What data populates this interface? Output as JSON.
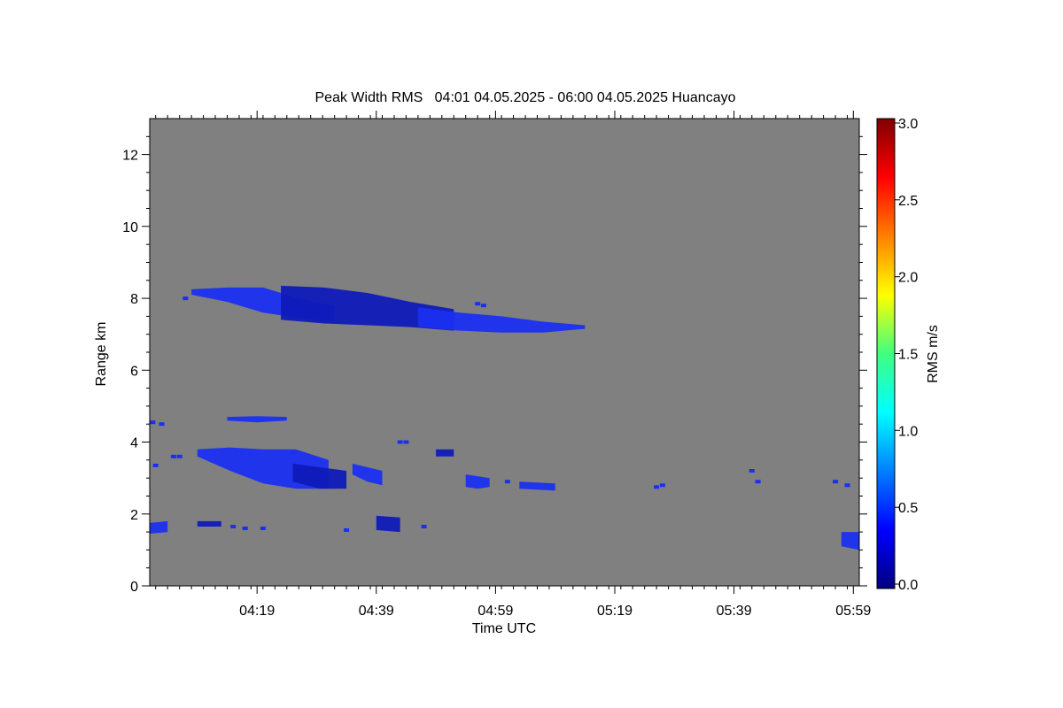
{
  "chart_data": {
    "type": "heatmap",
    "title": "Peak Width RMS   04:01 04.05.2025 - 06:00 04.05.2025 Huancayo",
    "xlabel": "Time UTC",
    "ylabel": "Range km",
    "x_range_minutes_utc": [
      241,
      360
    ],
    "xlim": [
      "04:01",
      "06:00"
    ],
    "x_ticks": [
      "04:19",
      "04:39",
      "04:59",
      "05:19",
      "05:39",
      "05:59"
    ],
    "ylim": [
      0,
      13
    ],
    "y_ticks": [
      "0",
      "2",
      "4",
      "6",
      "8",
      "10",
      "12"
    ],
    "background_color": "#808080",
    "colorbar": {
      "label": "RMS m/s",
      "range": [
        0.0,
        3.0
      ],
      "ticks": [
        "0.0",
        "0.5",
        "1.0",
        "1.5",
        "2.0",
        "2.5",
        "3.0"
      ],
      "colormap": "jet"
    },
    "echo_color": "#1a2ff0",
    "echo_color_dark": "#0f1bb8",
    "echo_regions": [
      {
        "t": [
          248,
          272
        ],
        "top": [
          8.25,
          8.3,
          8.3,
          8.0,
          7.8
        ],
        "bottom": [
          8.1,
          7.9,
          7.6,
          7.45,
          7.35
        ]
      },
      {
        "t": [
          263,
          292
        ],
        "top": [
          8.35,
          8.3,
          8.15,
          7.9,
          7.7
        ],
        "bottom": [
          7.4,
          7.3,
          7.25,
          7.2,
          7.1
        ]
      },
      {
        "t": [
          286,
          314
        ],
        "top": [
          7.75,
          7.6,
          7.5,
          7.35,
          7.25
        ],
        "bottom": [
          7.2,
          7.1,
          7.05,
          7.05,
          7.15
        ]
      },
      {
        "t": [
          249,
          271
        ],
        "top": [
          3.8,
          3.85,
          3.8,
          3.8,
          3.5
        ],
        "bottom": [
          3.6,
          3.2,
          2.85,
          2.7,
          2.7
        ]
      },
      {
        "t": [
          265,
          274
        ],
        "top": [
          3.4,
          3.3,
          3.2
        ],
        "bottom": [
          2.9,
          2.7,
          2.7
        ]
      },
      {
        "t": [
          275,
          280
        ],
        "top": [
          3.4,
          3.3,
          3.2
        ],
        "bottom": [
          3.1,
          2.9,
          2.8
        ]
      },
      {
        "t": [
          294,
          298
        ],
        "top": [
          3.1,
          3.05,
          3.0
        ],
        "bottom": [
          2.75,
          2.7,
          2.75
        ]
      },
      {
        "t": [
          289,
          292
        ],
        "top": [
          3.8,
          3.8
        ],
        "bottom": [
          3.6,
          3.6
        ]
      },
      {
        "t": [
          254,
          264
        ],
        "top": [
          4.7,
          4.72,
          4.7
        ],
        "bottom": [
          4.6,
          4.55,
          4.6
        ]
      },
      {
        "t": [
          241,
          244
        ],
        "top": [
          1.75,
          1.8
        ],
        "bottom": [
          1.45,
          1.5
        ]
      },
      {
        "t": [
          279,
          283
        ],
        "top": [
          1.95,
          1.9
        ],
        "bottom": [
          1.55,
          1.5
        ]
      },
      {
        "t": [
          357,
          360
        ],
        "top": [
          1.5,
          1.5
        ],
        "bottom": [
          1.1,
          1.0
        ]
      },
      {
        "t": [
          303,
          309
        ],
        "top": [
          2.9,
          2.85
        ],
        "bottom": [
          2.7,
          2.65
        ]
      },
      {
        "t": [
          249,
          253
        ],
        "top": [
          1.8,
          1.8
        ],
        "bottom": [
          1.65,
          1.65
        ]
      }
    ],
    "echo_points": [
      [
        247,
        8.0
      ],
      [
        241.5,
        4.55
      ],
      [
        243,
        4.5
      ],
      [
        246,
        3.6
      ],
      [
        242,
        3.35
      ],
      [
        245,
        3.6
      ],
      [
        301,
        2.9
      ],
      [
        283,
        4.0
      ],
      [
        284,
        4.0
      ],
      [
        265,
        3.7
      ],
      [
        287,
        1.65
      ],
      [
        274,
        1.55
      ],
      [
        255,
        1.65
      ],
      [
        257,
        1.6
      ],
      [
        260,
        1.6
      ],
      [
        326,
        2.75
      ],
      [
        327,
        2.8
      ],
      [
        342,
        3.2
      ],
      [
        343,
        2.9
      ],
      [
        356,
        2.9
      ],
      [
        358,
        2.8
      ],
      [
        296,
        7.85
      ],
      [
        297,
        7.8
      ]
    ]
  }
}
